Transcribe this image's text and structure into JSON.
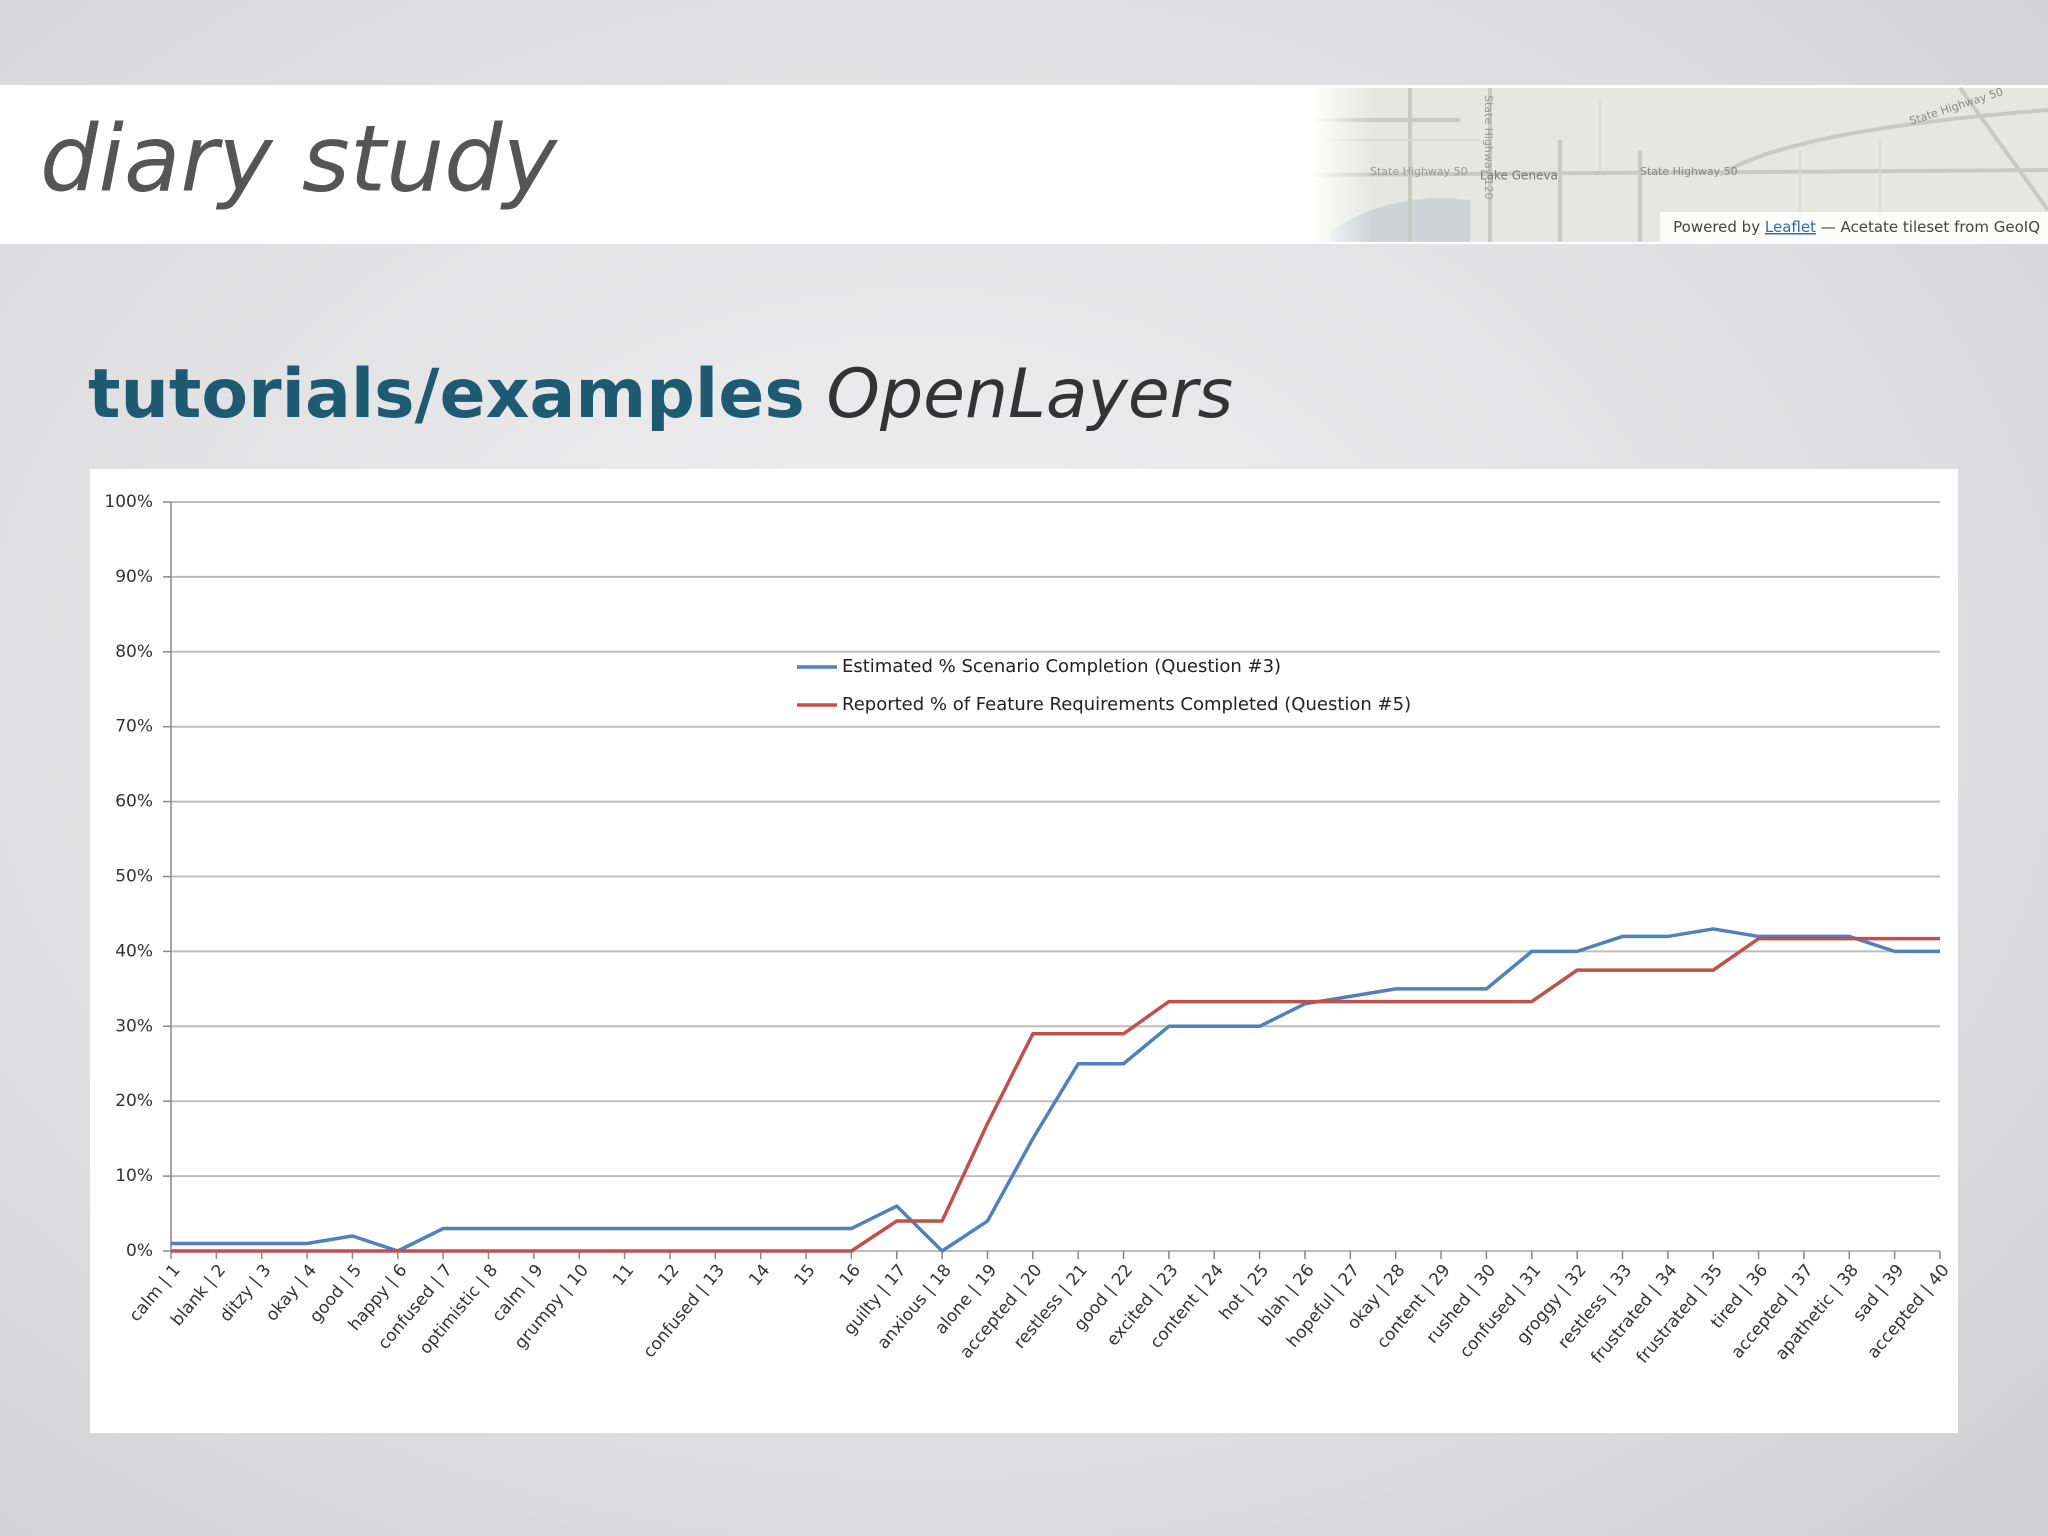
{
  "header": {
    "title": "diary study",
    "map_labels": [
      "State Highway 50",
      "Lake Geneva",
      "State Highway 50",
      "State Highway 50",
      "State Highway 120"
    ],
    "attribution": {
      "prefix": "Powered by",
      "link": "Leaflet",
      "suffix": "— Acetate tileset from GeoIQ"
    }
  },
  "heading": {
    "strong": "tutorials/examples",
    "em": "OpenLayers"
  },
  "chart_data": {
    "type": "line",
    "categories": [
      "calm | 1",
      "blank | 2",
      "ditzy | 3",
      "okay | 4",
      "good | 5",
      "happy | 6",
      "confused | 7",
      "optimistic | 8",
      "calm | 9",
      "grumpy | 10",
      "11",
      "12",
      "confused | 13",
      "14",
      "15",
      "16",
      "guilty | 17",
      "anxious | 18",
      "alone | 19",
      "accepted | 20",
      "restless | 21",
      "good | 22",
      "excited | 23",
      "content | 24",
      "hot | 25",
      "blah | 26",
      "hopeful | 27",
      "okay | 28",
      "content | 29",
      "rushed | 30",
      "confused | 31",
      "groggy | 32",
      "restless | 33",
      "frustrated | 34",
      "frustrated | 35",
      "tired | 36",
      "accepted | 37",
      "apathetic | 38",
      "sad | 39",
      "accepted | 40"
    ],
    "series": [
      {
        "name": "Estimated % Scenario Completion (Question #3)",
        "color": "#4f81bd",
        "values": [
          1,
          1,
          1,
          1,
          2,
          0,
          3,
          3,
          3,
          3,
          3,
          3,
          3,
          3,
          3,
          3,
          6,
          0,
          4,
          15,
          25,
          25,
          30,
          30,
          30,
          33,
          34,
          35,
          35,
          35,
          40,
          40,
          42,
          42,
          43,
          42,
          42,
          42,
          40,
          40
        ]
      },
      {
        "name": "Reported % of Feature Requirements Completed (Question #5)",
        "color": "#c0504d",
        "values": [
          0,
          0,
          0,
          0,
          0,
          0,
          0,
          0,
          0,
          0,
          0,
          0,
          0,
          0,
          0,
          0,
          4,
          4,
          17,
          29,
          29,
          29,
          33.3,
          33.3,
          33.3,
          33.3,
          33.3,
          33.3,
          33.3,
          33.3,
          33.3,
          37.5,
          37.5,
          37.5,
          37.5,
          41.7,
          41.7,
          41.7,
          41.7,
          41.7
        ]
      }
    ],
    "ylim": [
      0,
      100
    ],
    "yticks": [
      {
        "value": 0,
        "label": "0%"
      },
      {
        "value": 10,
        "label": "10%"
      },
      {
        "value": 20,
        "label": "20%"
      },
      {
        "value": 30,
        "label": "30%"
      },
      {
        "value": 40,
        "label": "40%"
      },
      {
        "value": 50,
        "label": "50%"
      },
      {
        "value": 60,
        "label": "60%"
      },
      {
        "value": 70,
        "label": "70%"
      },
      {
        "value": 80,
        "label": "80%"
      },
      {
        "value": 90,
        "label": "90%"
      },
      {
        "value": 100,
        "label": "100%"
      }
    ],
    "grid": true
  }
}
